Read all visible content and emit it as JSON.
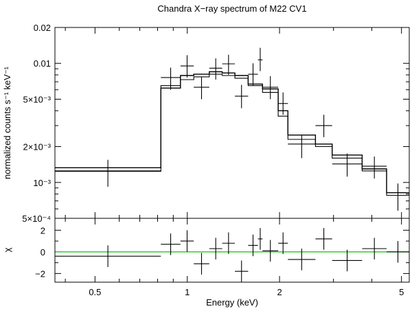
{
  "chart_data": {
    "type": "scatter",
    "title": "Chandra X−ray spectrum of M22 CV1",
    "xlabel": "Energy (keV)",
    "x_scale": "log",
    "xlim": [
      0.37,
      5.3
    ],
    "x_ticks": [
      {
        "value": 0.5,
        "label": "0.5"
      },
      {
        "value": 1,
        "label": "1"
      },
      {
        "value": 2,
        "label": "2"
      },
      {
        "value": 5,
        "label": "5"
      }
    ],
    "top_panel": {
      "ylabel": "normalized counts s⁻¹ keV⁻¹",
      "y_scale": "log",
      "ylim": [
        0.0005,
        0.02
      ],
      "y_ticks": [
        {
          "value": 0.02,
          "label": "0.02"
        },
        {
          "value": 0.01,
          "label": "0.01"
        },
        {
          "value": 0.005,
          "label": "5×10⁻³"
        },
        {
          "value": 0.002,
          "label": "2×10⁻³"
        },
        {
          "value": 0.001,
          "label": "10⁻³"
        },
        {
          "value": 0.0005,
          "label": "5×10⁻⁴"
        }
      ],
      "data": [
        {
          "e_lo": 0.37,
          "e_hi": 0.82,
          "y": 0.00125,
          "y_lo": 0.00092,
          "y_hi": 0.00155
        },
        {
          "e_lo": 0.82,
          "e_hi": 0.95,
          "y": 0.0076,
          "y_lo": 0.006,
          "y_hi": 0.0092
        },
        {
          "e_lo": 0.95,
          "e_hi": 1.05,
          "y": 0.0095,
          "y_lo": 0.0076,
          "y_hi": 0.0117
        },
        {
          "e_lo": 1.05,
          "e_hi": 1.18,
          "y": 0.0063,
          "y_lo": 0.005,
          "y_hi": 0.0077
        },
        {
          "e_lo": 1.18,
          "e_hi": 1.3,
          "y": 0.0091,
          "y_lo": 0.0073,
          "y_hi": 0.011
        },
        {
          "e_lo": 1.3,
          "e_hi": 1.43,
          "y": 0.0099,
          "y_lo": 0.008,
          "y_hi": 0.0118
        },
        {
          "e_lo": 1.43,
          "e_hi": 1.58,
          "y": 0.0053,
          "y_lo": 0.0042,
          "y_hi": 0.0066
        },
        {
          "e_lo": 1.58,
          "e_hi": 1.7,
          "y": 0.0081,
          "y_lo": 0.0065,
          "y_hi": 0.01
        },
        {
          "e_lo": 1.7,
          "e_hi": 1.76,
          "y": 0.0107,
          "y_lo": 0.0086,
          "y_hi": 0.0135
        },
        {
          "e_lo": 1.76,
          "e_hi": 1.98,
          "y": 0.0063,
          "y_lo": 0.005,
          "y_hi": 0.0078
        },
        {
          "e_lo": 1.98,
          "e_hi": 2.13,
          "y": 0.0046,
          "y_lo": 0.0037,
          "y_hi": 0.0057
        },
        {
          "e_lo": 2.13,
          "e_hi": 2.62,
          "y": 0.0021,
          "y_lo": 0.0016,
          "y_hi": 0.0025
        },
        {
          "e_lo": 2.62,
          "e_hi": 2.97,
          "y": 0.003,
          "y_lo": 0.0024,
          "y_hi": 0.0037
        },
        {
          "e_lo": 2.97,
          "e_hi": 3.72,
          "y": 0.00143,
          "y_lo": 0.00112,
          "y_hi": 0.00175
        },
        {
          "e_lo": 3.72,
          "e_hi": 4.47,
          "y": 0.00137,
          "y_lo": 0.00108,
          "y_hi": 0.00165
        },
        {
          "e_lo": 4.47,
          "e_hi": 5.3,
          "y": 0.00078,
          "y_lo": 0.00058,
          "y_hi": 0.00098
        }
      ],
      "model_upper": [
        {
          "e_lo": 0.37,
          "e_hi": 0.82,
          "y": 0.00133
        },
        {
          "e_lo": 0.82,
          "e_hi": 0.95,
          "y": 0.0062
        },
        {
          "e_lo": 0.95,
          "e_hi": 1.05,
          "y": 0.0079
        },
        {
          "e_lo": 1.05,
          "e_hi": 1.18,
          "y": 0.0081
        },
        {
          "e_lo": 1.18,
          "e_hi": 1.3,
          "y": 0.0085
        },
        {
          "e_lo": 1.3,
          "e_hi": 1.43,
          "y": 0.0083
        },
        {
          "e_lo": 1.43,
          "e_hi": 1.58,
          "y": 0.0079
        },
        {
          "e_lo": 1.58,
          "e_hi": 1.76,
          "y": 0.0067
        },
        {
          "e_lo": 1.76,
          "e_hi": 1.98,
          "y": 0.0061
        },
        {
          "e_lo": 1.98,
          "e_hi": 2.13,
          "y": 0.004
        },
        {
          "e_lo": 2.13,
          "e_hi": 2.62,
          "y": 0.0025
        },
        {
          "e_lo": 2.62,
          "e_hi": 2.97,
          "y": 0.0021
        },
        {
          "e_lo": 2.97,
          "e_hi": 3.72,
          "y": 0.0017
        },
        {
          "e_lo": 3.72,
          "e_hi": 4.47,
          "y": 0.0013
        },
        {
          "e_lo": 4.47,
          "e_hi": 5.3,
          "y": 0.00082
        }
      ],
      "model_lower": [
        {
          "e_lo": 0.37,
          "e_hi": 0.82,
          "y": 0.00124
        },
        {
          "e_lo": 0.82,
          "e_hi": 0.95,
          "y": 0.0065
        },
        {
          "e_lo": 0.95,
          "e_hi": 1.05,
          "y": 0.0073
        },
        {
          "e_lo": 1.05,
          "e_hi": 1.18,
          "y": 0.0077
        },
        {
          "e_lo": 1.18,
          "e_hi": 1.3,
          "y": 0.0081
        },
        {
          "e_lo": 1.3,
          "e_hi": 1.43,
          "y": 0.0079
        },
        {
          "e_lo": 1.43,
          "e_hi": 1.58,
          "y": 0.0075
        },
        {
          "e_lo": 1.58,
          "e_hi": 1.76,
          "y": 0.0065
        },
        {
          "e_lo": 1.76,
          "e_hi": 1.98,
          "y": 0.0057
        },
        {
          "e_lo": 1.98,
          "e_hi": 2.13,
          "y": 0.0036
        },
        {
          "e_lo": 2.13,
          "e_hi": 2.62,
          "y": 0.0023
        },
        {
          "e_lo": 2.62,
          "e_hi": 2.97,
          "y": 0.002
        },
        {
          "e_lo": 2.97,
          "e_hi": 3.72,
          "y": 0.0016
        },
        {
          "e_lo": 3.72,
          "e_hi": 4.47,
          "y": 0.00125
        },
        {
          "e_lo": 4.47,
          "e_hi": 5.3,
          "y": 0.00078
        }
      ]
    },
    "bottom_panel": {
      "ylabel": "χ",
      "ylim": [
        -2.8,
        3.1
      ],
      "y_ticks": [
        {
          "value": 2,
          "label": "2"
        },
        {
          "value": 0,
          "label": "0"
        },
        {
          "value": -2,
          "label": "−2"
        }
      ],
      "zero_line": {
        "value": 0,
        "color": "#33cc33"
      },
      "data": [
        {
          "e_lo": 0.37,
          "e_hi": 0.82,
          "y": -0.4,
          "err": 1.0
        },
        {
          "e_lo": 0.82,
          "e_hi": 0.95,
          "y": 0.7,
          "err": 1.0
        },
        {
          "e_lo": 0.95,
          "e_hi": 1.05,
          "y": 1.0,
          "err": 1.0
        },
        {
          "e_lo": 1.05,
          "e_hi": 1.18,
          "y": -1.1,
          "err": 1.0
        },
        {
          "e_lo": 1.18,
          "e_hi": 1.3,
          "y": 0.3,
          "err": 1.0
        },
        {
          "e_lo": 1.3,
          "e_hi": 1.43,
          "y": 0.8,
          "err": 1.0
        },
        {
          "e_lo": 1.43,
          "e_hi": 1.58,
          "y": -1.8,
          "err": 1.0
        },
        {
          "e_lo": 1.58,
          "e_hi": 1.7,
          "y": 0.6,
          "err": 1.0
        },
        {
          "e_lo": 1.7,
          "e_hi": 1.76,
          "y": 1.2,
          "err": 1.0
        },
        {
          "e_lo": 1.76,
          "e_hi": 1.98,
          "y": 0.1,
          "err": 1.0
        },
        {
          "e_lo": 1.98,
          "e_hi": 2.13,
          "y": 0.8,
          "err": 1.0
        },
        {
          "e_lo": 2.13,
          "e_hi": 2.62,
          "y": -0.7,
          "err": 1.0
        },
        {
          "e_lo": 2.62,
          "e_hi": 2.97,
          "y": 1.2,
          "err": 1.0
        },
        {
          "e_lo": 2.97,
          "e_hi": 3.72,
          "y": -0.8,
          "err": 1.0
        },
        {
          "e_lo": 3.72,
          "e_hi": 4.47,
          "y": 0.3,
          "err": 1.0
        },
        {
          "e_lo": 4.47,
          "e_hi": 5.3,
          "y": 0.0,
          "err": 1.0
        }
      ]
    }
  }
}
